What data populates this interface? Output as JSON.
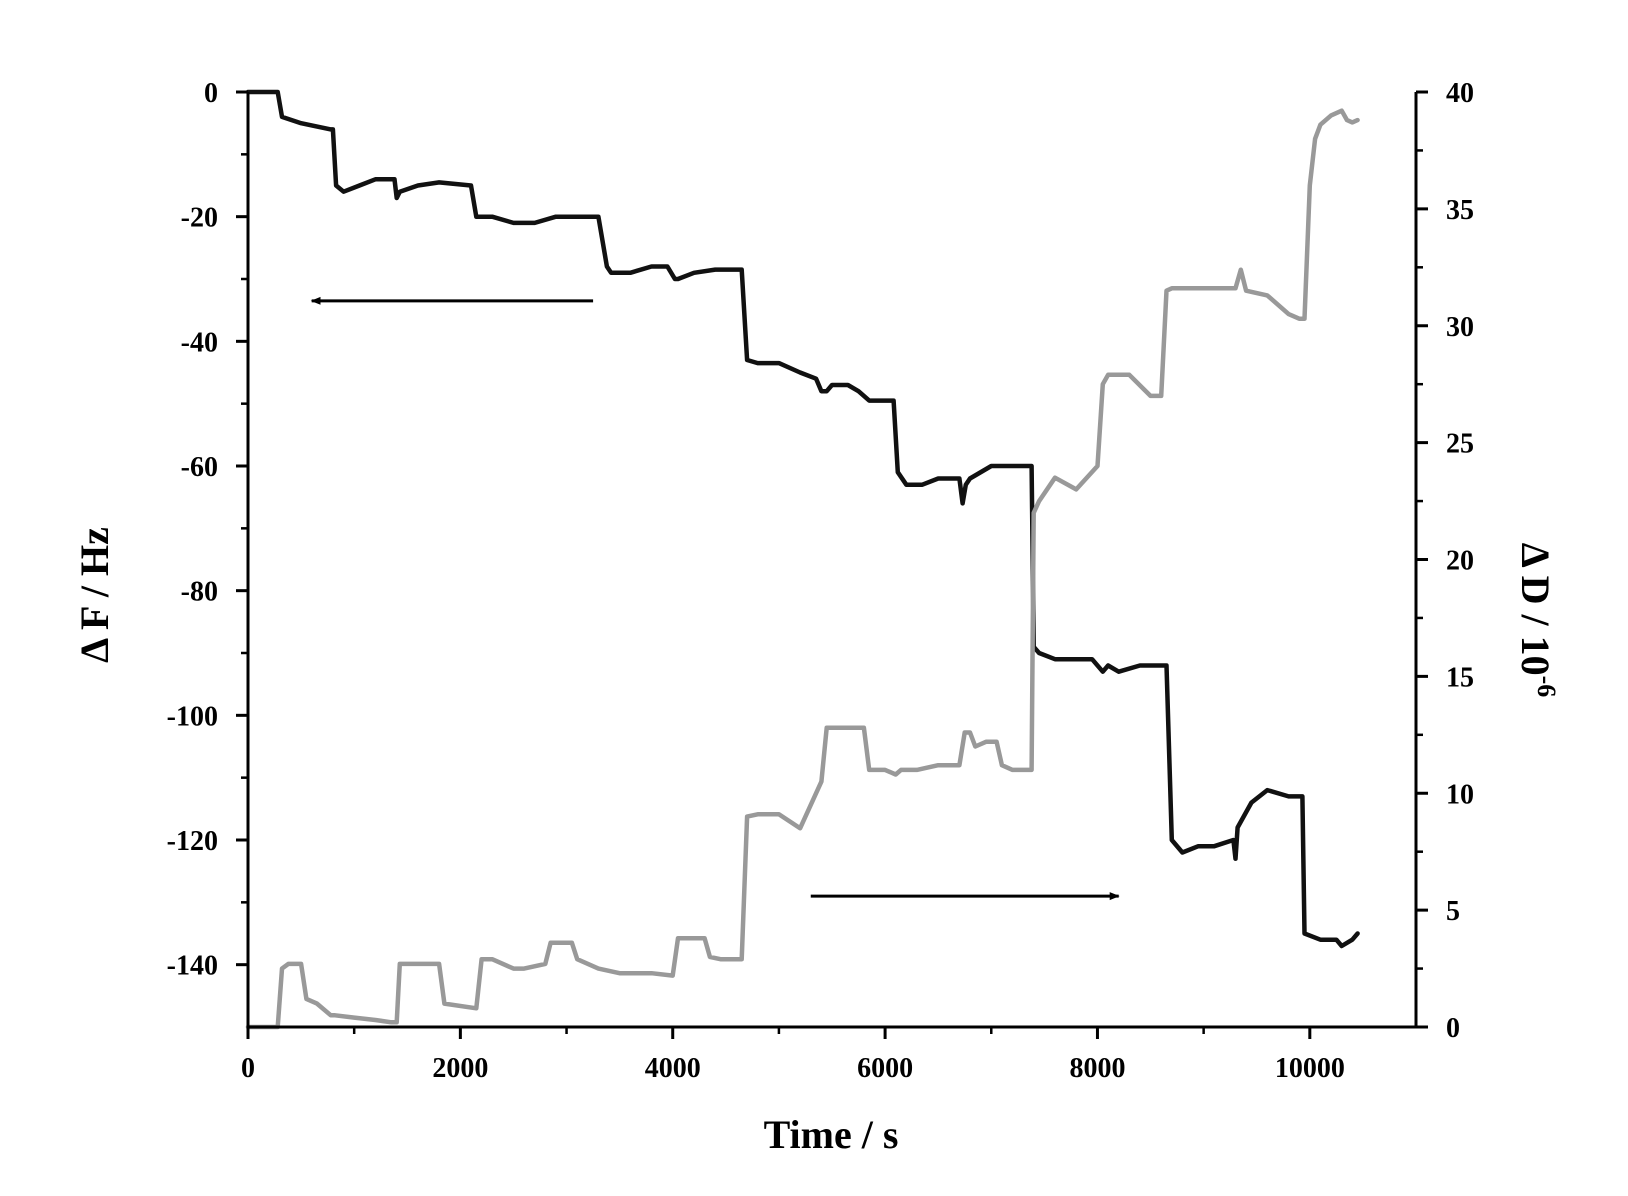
{
  "chart_data": {
    "type": "line",
    "xlabel": "Time / s",
    "ylabel_left": "Δ F / Hz",
    "ylabel_right_base": "Δ D / 10",
    "ylabel_right_exp": "-6",
    "xlim": [
      0,
      11000
    ],
    "ylim_left": [
      -150,
      0
    ],
    "ylim_right": [
      0,
      40
    ],
    "x_ticks": [
      0,
      2000,
      4000,
      6000,
      8000,
      10000
    ],
    "x_tick_labels": [
      "0",
      "2000",
      "4000",
      "6000",
      "8000",
      "10000"
    ],
    "y_left_ticks": [
      0,
      -20,
      -40,
      -60,
      -80,
      -100,
      -120,
      -140
    ],
    "y_left_tick_labels": [
      "0",
      "-20",
      "-40",
      "-60",
      "-80",
      "-100",
      "-120",
      "-140"
    ],
    "y_right_ticks": [
      0,
      5,
      10,
      15,
      20,
      25,
      30,
      35,
      40
    ],
    "y_right_tick_labels": [
      "0",
      "5",
      "10",
      "15",
      "20",
      "25",
      "30",
      "35",
      "40"
    ],
    "grid": false,
    "colors": {
      "frequency": "#111111",
      "dissipation": "#999999",
      "axes": "#000000"
    },
    "series": [
      {
        "key": "frequency",
        "axis": "left",
        "x": [
          0,
          280,
          320,
          500,
          780,
          800,
          830,
          900,
          1050,
          1200,
          1380,
          1400,
          1430,
          1600,
          1800,
          2100,
          2150,
          2180,
          2300,
          2500,
          2700,
          2900,
          3000,
          3150,
          3300,
          3380,
          3420,
          3600,
          3800,
          3950,
          4020,
          4050,
          4200,
          4400,
          4600,
          4650,
          4700,
          4800,
          5000,
          5200,
          5350,
          5400,
          5450,
          5500,
          5650,
          5750,
          5850,
          6000,
          6080,
          6120,
          6200,
          6350,
          6500,
          6700,
          6730,
          6760,
          6800,
          7000,
          7200,
          7350,
          7380,
          7400,
          7450,
          7600,
          7750,
          7950,
          8050,
          8100,
          8200,
          8400,
          8600,
          8650,
          8700,
          8800,
          8950,
          9100,
          9280,
          9300,
          9320,
          9450,
          9600,
          9800,
          9900,
          9930,
          9950,
          10100,
          10250,
          10300,
          10400,
          10450
        ],
        "y": [
          0,
          0,
          -4,
          -5,
          -6,
          -6,
          -15,
          -16,
          -15,
          -14,
          -14,
          -17,
          -16,
          -15,
          -14.5,
          -15,
          -20,
          -20,
          -20,
          -21,
          -21,
          -20,
          -20,
          -20,
          -20,
          -28,
          -29,
          -29,
          -28,
          -28,
          -30,
          -30,
          -29,
          -28.5,
          -28.5,
          -28.5,
          -43,
          -43.5,
          -43.5,
          -45,
          -46,
          -48,
          -48,
          -47,
          -47,
          -48,
          -49.5,
          -49.5,
          -49.5,
          -61,
          -63,
          -63,
          -62,
          -62,
          -66,
          -63,
          -62,
          -60,
          -60,
          -60,
          -60,
          -89,
          -90,
          -91,
          -91,
          -91,
          -93,
          -92,
          -93,
          -92,
          -92,
          -92,
          -120,
          -122,
          -121,
          -121,
          -120,
          -123,
          -118,
          -114,
          -112,
          -113,
          -113,
          -113,
          -135,
          -136,
          -136,
          -137,
          -136,
          -135
        ]
      },
      {
        "key": "dissipation",
        "axis": "right",
        "x": [
          0,
          280,
          320,
          380,
          500,
          550,
          650,
          780,
          820,
          1000,
          1200,
          1350,
          1400,
          1430,
          1460,
          1600,
          1800,
          1850,
          2150,
          2200,
          2300,
          2500,
          2600,
          2800,
          2850,
          2900,
          3050,
          3100,
          3300,
          3500,
          3800,
          4000,
          4050,
          4100,
          4300,
          4350,
          4450,
          4650,
          4700,
          4800,
          5000,
          5200,
          5400,
          5450,
          5600,
          5800,
          5850,
          6000,
          6100,
          6150,
          6300,
          6500,
          6700,
          6750,
          6800,
          6850,
          6950,
          7050,
          7100,
          7200,
          7350,
          7380,
          7400,
          7450,
          7600,
          7800,
          8000,
          8050,
          8100,
          8200,
          8300,
          8500,
          8600,
          8650,
          8700,
          8800,
          9000,
          9200,
          9300,
          9350,
          9400,
          9600,
          9800,
          9900,
          9950,
          10000,
          10050,
          10100,
          10200,
          10300,
          10350,
          10400,
          10450
        ],
        "y": [
          0,
          0,
          2.5,
          2.7,
          2.7,
          1.2,
          1,
          0.5,
          0.5,
          0.4,
          0.3,
          0.2,
          0.2,
          2.7,
          2.7,
          2.7,
          2.7,
          1,
          0.8,
          2.9,
          2.9,
          2.5,
          2.5,
          2.7,
          3.6,
          3.6,
          3.6,
          2.9,
          2.5,
          2.3,
          2.3,
          2.2,
          3.8,
          3.8,
          3.8,
          3,
          2.9,
          2.9,
          9,
          9.1,
          9.1,
          8.5,
          10.5,
          12.8,
          12.8,
          12.8,
          11,
          11,
          10.8,
          11,
          11,
          11.2,
          11.2,
          12.6,
          12.6,
          12,
          12.2,
          12.2,
          11.2,
          11,
          11,
          11,
          22,
          22.5,
          23.5,
          23,
          24,
          27.5,
          27.9,
          27.9,
          27.9,
          27,
          27,
          31.5,
          31.6,
          31.6,
          31.6,
          31.6,
          31.6,
          32.4,
          31.5,
          31.3,
          30.5,
          30.3,
          30.3,
          36,
          38,
          38.6,
          39,
          39.2,
          38.8,
          38.7,
          38.8
        ]
      }
    ],
    "annotations": [
      {
        "type": "arrow",
        "direction": "left",
        "points_to": "left axis",
        "x_from": 3250,
        "x_to": 600,
        "y_left": -33.5
      },
      {
        "type": "arrow",
        "direction": "right",
        "points_to": "right axis",
        "x_from": 5300,
        "x_to": 8200,
        "y_right": 5.6
      }
    ]
  }
}
